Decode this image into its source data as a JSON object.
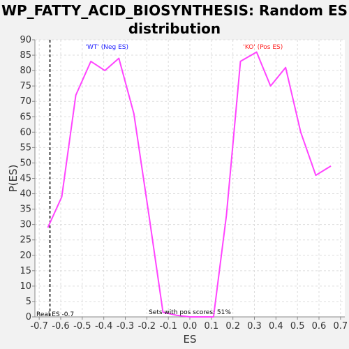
{
  "chart_data": {
    "type": "line",
    "title_line1": "WP_FATTY_ACID_BIOSYNTHESIS: Random ES",
    "title_line2": "distribution",
    "xlabel": "ES",
    "ylabel": "P(ES)",
    "xlim": [
      -0.72,
      0.72
    ],
    "ylim": [
      0,
      90
    ],
    "xticks": [
      -0.7,
      -0.6,
      -0.5,
      -0.4,
      -0.3,
      -0.2,
      -0.1,
      0.0,
      0.1,
      0.2,
      0.3,
      0.4,
      0.5,
      0.6,
      0.7
    ],
    "xtick_labels": [
      "-0.7",
      "-0.6",
      "-0.5",
      "-0.4",
      "-0.3",
      "-0.2",
      "-0.1",
      "0.0",
      "0.1",
      "0.2",
      "0.3",
      "0.4",
      "0.5",
      "0.6",
      "0.7"
    ],
    "yticks": [
      0,
      5,
      10,
      15,
      20,
      25,
      30,
      35,
      40,
      45,
      50,
      55,
      60,
      65,
      70,
      75,
      80,
      85,
      90
    ],
    "grid": true,
    "series": [
      {
        "color": "#ff44ff",
        "x": [
          -0.66,
          -0.595,
          -0.53,
          -0.46,
          -0.395,
          -0.33,
          -0.26,
          -0.19,
          -0.125,
          -0.06,
          0.0,
          0.06,
          0.11,
          0.17,
          0.235,
          0.31,
          0.375,
          0.445,
          0.515,
          0.585,
          0.655
        ],
        "y": [
          29,
          39,
          72,
          83,
          80,
          84,
          66,
          33,
          1.5,
          0.5,
          0,
          0,
          0,
          33,
          83,
          86,
          75,
          81,
          60,
          46,
          49
        ]
      }
    ],
    "real_es": {
      "value": -0.65,
      "color": "#000000",
      "label": "Real ES -0.7"
    },
    "annotations": {
      "neg_label": "'WT' (Neg ES)",
      "neg_color": "#2222ff",
      "pos_label": "'KO' (Pos ES)",
      "pos_color": "#ff2222",
      "bottom_label": "Sets with pos scores: 51%"
    }
  }
}
